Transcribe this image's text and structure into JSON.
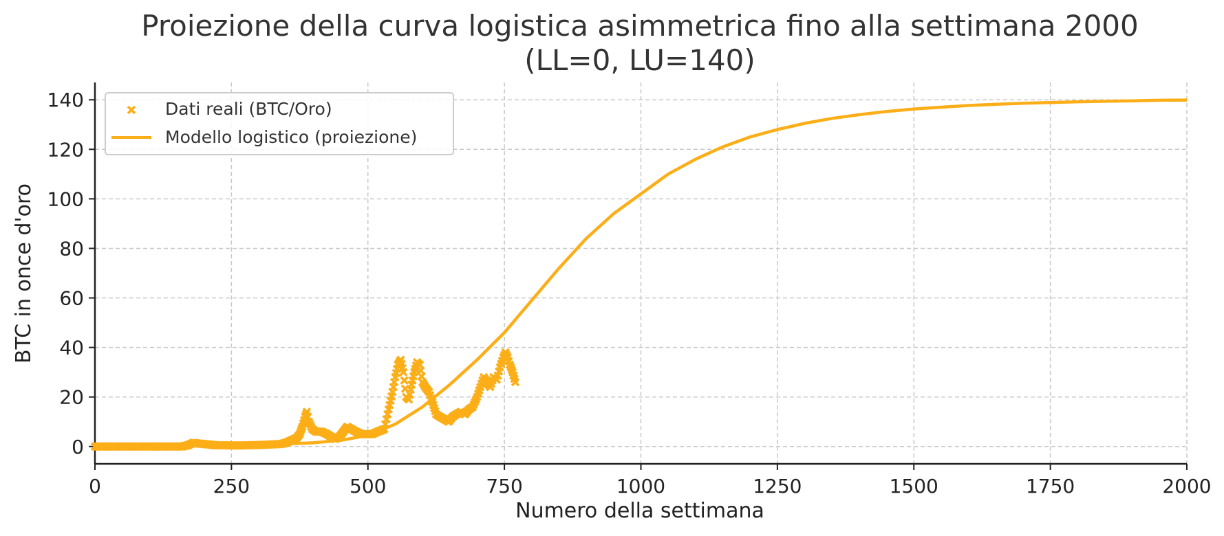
{
  "chart_data": {
    "type": "line",
    "title_line1": "Proiezione della curva logistica asimmetrica fino alla settimana 2000",
    "title_line2": "(LL=0, LU=140)",
    "xlabel": "Numero della settimana",
    "ylabel": "BTC in once d'oro",
    "xlim": [
      0,
      2000
    ],
    "ylim": [
      -7,
      147
    ],
    "xticks": [
      0,
      250,
      500,
      750,
      1000,
      1250,
      1500,
      1750,
      2000
    ],
    "yticks": [
      0,
      20,
      40,
      60,
      80,
      100,
      120,
      140
    ],
    "grid": true,
    "legend_position": "top-left",
    "color": "#FBAE17",
    "series": [
      {
        "name": "Dati reali (BTC/Oro)",
        "type": "scatter",
        "marker": "x",
        "points": [
          [
            0,
            0
          ],
          [
            20,
            0
          ],
          [
            40,
            0
          ],
          [
            60,
            0
          ],
          [
            80,
            0
          ],
          [
            100,
            0
          ],
          [
            120,
            0
          ],
          [
            140,
            0
          ],
          [
            160,
            0
          ],
          [
            170,
            0.5
          ],
          [
            180,
            1.5
          ],
          [
            190,
            1.2
          ],
          [
            200,
            1.0
          ],
          [
            210,
            0.8
          ],
          [
            220,
            0.5
          ],
          [
            240,
            0.5
          ],
          [
            260,
            0.4
          ],
          [
            280,
            0.5
          ],
          [
            300,
            0.6
          ],
          [
            320,
            0.8
          ],
          [
            340,
            1.0
          ],
          [
            350,
            1.5
          ],
          [
            360,
            2.5
          ],
          [
            370,
            3.5
          ],
          [
            375,
            5
          ],
          [
            380,
            8
          ],
          [
            385,
            12
          ],
          [
            388,
            14
          ],
          [
            392,
            10
          ],
          [
            398,
            7
          ],
          [
            405,
            6
          ],
          [
            415,
            6
          ],
          [
            425,
            5
          ],
          [
            432,
            4
          ],
          [
            440,
            3
          ],
          [
            448,
            4
          ],
          [
            455,
            6
          ],
          [
            462,
            8
          ],
          [
            470,
            7
          ],
          [
            478,
            6
          ],
          [
            488,
            5
          ],
          [
            498,
            5
          ],
          [
            508,
            5
          ],
          [
            518,
            6
          ],
          [
            530,
            7
          ],
          [
            538,
            15
          ],
          [
            545,
            22
          ],
          [
            550,
            28
          ],
          [
            555,
            33
          ],
          [
            560,
            35
          ],
          [
            565,
            30
          ],
          [
            570,
            20
          ],
          [
            575,
            19
          ],
          [
            580,
            25
          ],
          [
            585,
            30
          ],
          [
            590,
            34
          ],
          [
            595,
            33
          ],
          [
            600,
            26
          ],
          [
            605,
            24
          ],
          [
            612,
            22
          ],
          [
            618,
            18
          ],
          [
            625,
            13
          ],
          [
            632,
            12
          ],
          [
            640,
            11
          ],
          [
            648,
            10
          ],
          [
            655,
            12
          ],
          [
            662,
            13
          ],
          [
            670,
            14
          ],
          [
            678,
            13
          ],
          [
            685,
            15
          ],
          [
            692,
            16
          ],
          [
            700,
            20
          ],
          [
            706,
            24
          ],
          [
            712,
            28
          ],
          [
            718,
            26
          ],
          [
            724,
            24
          ],
          [
            730,
            28
          ],
          [
            736,
            27
          ],
          [
            742,
            32
          ],
          [
            748,
            36
          ],
          [
            752,
            38
          ],
          [
            756,
            36
          ],
          [
            760,
            33
          ],
          [
            765,
            30
          ],
          [
            770,
            26
          ]
        ]
      },
      {
        "name": "Modello logistico (proiezione)",
        "type": "line",
        "points": [
          [
            0,
            0.05
          ],
          [
            100,
            0.1
          ],
          [
            200,
            0.3
          ],
          [
            300,
            0.6
          ],
          [
            400,
            1.5
          ],
          [
            450,
            2.5
          ],
          [
            500,
            4.5
          ],
          [
            550,
            9
          ],
          [
            600,
            16
          ],
          [
            650,
            25
          ],
          [
            700,
            35
          ],
          [
            750,
            46
          ],
          [
            800,
            59
          ],
          [
            850,
            72
          ],
          [
            900,
            84
          ],
          [
            950,
            94
          ],
          [
            1000,
            102
          ],
          [
            1050,
            110
          ],
          [
            1100,
            116
          ],
          [
            1150,
            121
          ],
          [
            1200,
            125
          ],
          [
            1250,
            128
          ],
          [
            1300,
            130.5
          ],
          [
            1350,
            132.5
          ],
          [
            1400,
            134
          ],
          [
            1450,
            135.3
          ],
          [
            1500,
            136.3
          ],
          [
            1550,
            137
          ],
          [
            1600,
            137.7
          ],
          [
            1650,
            138.2
          ],
          [
            1700,
            138.6
          ],
          [
            1750,
            138.9
          ],
          [
            1800,
            139.2
          ],
          [
            1850,
            139.4
          ],
          [
            1900,
            139.6
          ],
          [
            1950,
            139.8
          ],
          [
            2000,
            139.9
          ]
        ]
      }
    ]
  }
}
